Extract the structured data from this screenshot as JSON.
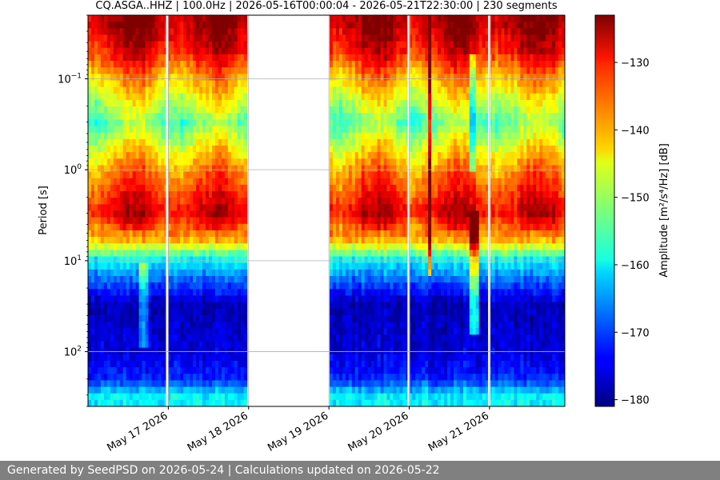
{
  "chart_data": {
    "type": "heatmap",
    "title": "CQ.ASGA..HHZ | 100.0Hz | 2026-05-16T00:00:04 - 2026-05-21T22:30:00 | 230 segments",
    "xlabel": "",
    "ylabel": "Period [s]",
    "colorbar_label": "Amplitude [m²/s⁴/Hz] [dB]",
    "x_start": "2026-05-16T00:00:04",
    "x_end": "2026-05-21T22:30:00",
    "x_ticks": [
      "May 17 2026",
      "May 18 2026",
      "May 19 2026",
      "May 20 2026",
      "May 21 2026"
    ],
    "x_tick_dates": [
      "2026-05-17",
      "2026-05-18",
      "2026-05-19",
      "2026-05-20",
      "2026-05-21"
    ],
    "y_scale": "log",
    "y_inverted": true,
    "y_range_s": [
      0.02,
      400
    ],
    "y_ticks": [
      {
        "value": 0.1,
        "base": "10",
        "exp": "−1"
      },
      {
        "value": 1,
        "base": "10",
        "exp": "0"
      },
      {
        "value": 10,
        "base": "10",
        "exp": "1"
      },
      {
        "value": 100,
        "base": "10",
        "exp": "2"
      }
    ],
    "grid": true,
    "colormap": "jet",
    "color_range_db": [
      -181,
      -123
    ],
    "colorbar_ticks": [
      -130,
      -140,
      -150,
      -160,
      -170,
      -180
    ],
    "data_gaps": [
      {
        "start": "2026-05-17T23:45:00",
        "end": "2026-05-18T23:59:59"
      }
    ],
    "series": [
      {
        "period_s": 0.025,
        "amplitude_db": -125
      },
      {
        "period_s": 0.05,
        "amplitude_db": -130
      },
      {
        "period_s": 0.1,
        "amplitude_db": -140
      },
      {
        "period_s": 0.3,
        "amplitude_db": -153
      },
      {
        "period_s": 1,
        "amplitude_db": -138
      },
      {
        "period_s": 3,
        "amplitude_db": -128
      },
      {
        "period_s": 6,
        "amplitude_db": -141
      },
      {
        "period_s": 10,
        "amplitude_db": -160
      },
      {
        "period_s": 30,
        "amplitude_db": -178
      },
      {
        "period_s": 100,
        "amplitude_db": -176
      },
      {
        "period_s": 200,
        "amplitude_db": -172
      },
      {
        "period_s": 300,
        "amplitude_db": -160
      }
    ]
  },
  "footer": {
    "text": "Generated by SeedPSD on 2026-05-24 | Calculations updated on 2026-05-22"
  }
}
